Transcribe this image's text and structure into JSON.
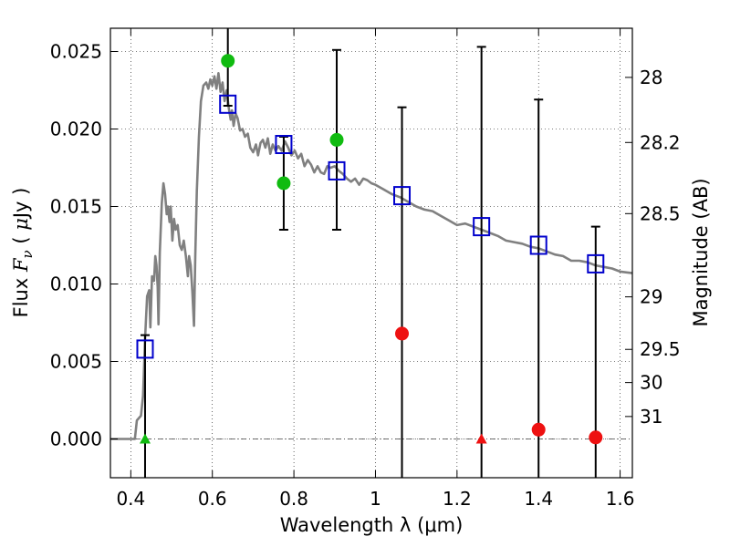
{
  "chart_data": {
    "type": "scatter",
    "xlabel": "Wavelength  λ (μm)",
    "ylabel": "Flux  F_ν  ( μJy )",
    "ylabel_parts": {
      "pre": "Flux  ",
      "sym": "F",
      "sub": "ν",
      "mid": "  ( ",
      "mu": "μ",
      "post": "Jy )"
    },
    "y2label": "Magnitude (AB)",
    "xlim": [
      0.35,
      1.63
    ],
    "ylim": [
      -0.0025,
      0.0265
    ],
    "grid": true,
    "x_ticks": [
      {
        "v": 0.4,
        "label": "0.4"
      },
      {
        "v": 0.6,
        "label": "0.6"
      },
      {
        "v": 0.8,
        "label": "0.8"
      },
      {
        "v": 1.0,
        "label": "1"
      },
      {
        "v": 1.2,
        "label": "1.2"
      },
      {
        "v": 1.4,
        "label": "1.4"
      },
      {
        "v": 1.6,
        "label": "1.6"
      }
    ],
    "y_ticks": [
      {
        "v": 0.0,
        "label": "0.000"
      },
      {
        "v": 0.005,
        "label": "0.005"
      },
      {
        "v": 0.01,
        "label": "0.010"
      },
      {
        "v": 0.015,
        "label": "0.015"
      },
      {
        "v": 0.02,
        "label": "0.020"
      },
      {
        "v": 0.025,
        "label": "0.025"
      }
    ],
    "mag_ticks": [
      {
        "v": 0.02333,
        "label": "28"
      },
      {
        "v": 0.01913,
        "label": "28.2"
      },
      {
        "v": 0.01454,
        "label": "28.5"
      },
      {
        "v": 0.00917,
        "label": "29"
      },
      {
        "v": 0.00578,
        "label": "29.5"
      },
      {
        "v": 0.00364,
        "label": "30"
      },
      {
        "v": 0.00145,
        "label": "31"
      }
    ],
    "model_spectrum": {
      "color": "#808080",
      "points": [
        [
          0.35,
          0.0
        ],
        [
          0.4,
          0.0
        ],
        [
          0.41,
          0.0
        ],
        [
          0.415,
          0.0012
        ],
        [
          0.425,
          0.0015
        ],
        [
          0.43,
          0.0028
        ],
        [
          0.435,
          0.0065
        ],
        [
          0.44,
          0.0092
        ],
        [
          0.445,
          0.0096
        ],
        [
          0.448,
          0.0072
        ],
        [
          0.452,
          0.0105
        ],
        [
          0.457,
          0.0102
        ],
        [
          0.46,
          0.0118
        ],
        [
          0.463,
          0.0112
        ],
        [
          0.466,
          0.0098
        ],
        [
          0.468,
          0.0074
        ],
        [
          0.471,
          0.012
        ],
        [
          0.476,
          0.0152
        ],
        [
          0.48,
          0.0165
        ],
        [
          0.484,
          0.0158
        ],
        [
          0.488,
          0.0145
        ],
        [
          0.491,
          0.015
        ],
        [
          0.495,
          0.014
        ],
        [
          0.498,
          0.015
        ],
        [
          0.502,
          0.0128
        ],
        [
          0.506,
          0.0142
        ],
        [
          0.51,
          0.0135
        ],
        [
          0.515,
          0.0138
        ],
        [
          0.52,
          0.0125
        ],
        [
          0.525,
          0.0122
        ],
        [
          0.53,
          0.0128
        ],
        [
          0.535,
          0.0118
        ],
        [
          0.54,
          0.0105
        ],
        [
          0.543,
          0.0118
        ],
        [
          0.547,
          0.0112
        ],
        [
          0.551,
          0.0095
        ],
        [
          0.555,
          0.0073
        ],
        [
          0.558,
          0.0118
        ],
        [
          0.562,
          0.016
        ],
        [
          0.567,
          0.0195
        ],
        [
          0.572,
          0.0218
        ],
        [
          0.578,
          0.0228
        ],
        [
          0.585,
          0.023
        ],
        [
          0.59,
          0.0226
        ],
        [
          0.595,
          0.0232
        ],
        [
          0.6,
          0.0228
        ],
        [
          0.605,
          0.0234
        ],
        [
          0.61,
          0.0226
        ],
        [
          0.615,
          0.0236
        ],
        [
          0.62,
          0.0224
        ],
        [
          0.625,
          0.023
        ],
        [
          0.63,
          0.0218
        ],
        [
          0.635,
          0.0225
        ],
        [
          0.64,
          0.0214
        ],
        [
          0.645,
          0.0206
        ],
        [
          0.648,
          0.0212
        ],
        [
          0.652,
          0.0202
        ],
        [
          0.657,
          0.021
        ],
        [
          0.662,
          0.0207
        ],
        [
          0.668,
          0.0199
        ],
        [
          0.674,
          0.02
        ],
        [
          0.68,
          0.0195
        ],
        [
          0.687,
          0.0197
        ],
        [
          0.693,
          0.0188
        ],
        [
          0.7,
          0.0185
        ],
        [
          0.707,
          0.019
        ],
        [
          0.712,
          0.0183
        ],
        [
          0.718,
          0.0191
        ],
        [
          0.724,
          0.0193
        ],
        [
          0.73,
          0.0188
        ],
        [
          0.736,
          0.0194
        ],
        [
          0.742,
          0.0184
        ],
        [
          0.748,
          0.019
        ],
        [
          0.755,
          0.0186
        ],
        [
          0.762,
          0.0189
        ],
        [
          0.77,
          0.0186
        ],
        [
          0.778,
          0.0192
        ],
        [
          0.786,
          0.0188
        ],
        [
          0.794,
          0.0183
        ],
        [
          0.802,
          0.0186
        ],
        [
          0.81,
          0.0181
        ],
        [
          0.818,
          0.0184
        ],
        [
          0.826,
          0.0176
        ],
        [
          0.834,
          0.018
        ],
        [
          0.842,
          0.0177
        ],
        [
          0.85,
          0.0172
        ],
        [
          0.858,
          0.0176
        ],
        [
          0.866,
          0.0172
        ],
        [
          0.874,
          0.0171
        ],
        [
          0.882,
          0.0176
        ],
        [
          0.89,
          0.0175
        ],
        [
          0.9,
          0.0176
        ],
        [
          0.91,
          0.0173
        ],
        [
          0.92,
          0.0171
        ],
        [
          0.93,
          0.0168
        ],
        [
          0.94,
          0.0166
        ],
        [
          0.95,
          0.0168
        ],
        [
          0.96,
          0.0164
        ],
        [
          0.97,
          0.0168
        ],
        [
          0.98,
          0.0167
        ],
        [
          0.99,
          0.0165
        ],
        [
          1.0,
          0.0164
        ],
        [
          1.02,
          0.0161
        ],
        [
          1.04,
          0.0158
        ],
        [
          1.06,
          0.0156
        ],
        [
          1.08,
          0.0153
        ],
        [
          1.1,
          0.015
        ],
        [
          1.12,
          0.0148
        ],
        [
          1.14,
          0.0147
        ],
        [
          1.16,
          0.0144
        ],
        [
          1.18,
          0.0141
        ],
        [
          1.2,
          0.0138
        ],
        [
          1.22,
          0.0139
        ],
        [
          1.24,
          0.0137
        ],
        [
          1.26,
          0.0135
        ],
        [
          1.28,
          0.0133
        ],
        [
          1.3,
          0.0131
        ],
        [
          1.32,
          0.0128
        ],
        [
          1.34,
          0.0127
        ],
        [
          1.36,
          0.0126
        ],
        [
          1.38,
          0.0124
        ],
        [
          1.4,
          0.0123
        ],
        [
          1.42,
          0.0121
        ],
        [
          1.44,
          0.0119
        ],
        [
          1.46,
          0.0118
        ],
        [
          1.48,
          0.0115
        ],
        [
          1.5,
          0.0115
        ],
        [
          1.52,
          0.0114
        ],
        [
          1.54,
          0.0112
        ],
        [
          1.56,
          0.0111
        ],
        [
          1.58,
          0.011
        ],
        [
          1.6,
          0.0108
        ],
        [
          1.63,
          0.0107
        ]
      ]
    },
    "model_bands": {
      "color": "#0000cc",
      "points": [
        [
          0.435,
          0.0058
        ],
        [
          0.638,
          0.0216
        ],
        [
          0.775,
          0.019
        ],
        [
          0.905,
          0.0173
        ],
        [
          1.065,
          0.0157
        ],
        [
          1.26,
          0.0137
        ],
        [
          1.4,
          0.0125
        ],
        [
          1.54,
          0.0113
        ]
      ]
    },
    "detections": {
      "color": "#10bb10",
      "points": [
        [
          0.638,
          0.0244
        ],
        [
          0.775,
          0.0165
        ],
        [
          0.905,
          0.0193
        ]
      ]
    },
    "nondetections": {
      "color": "#ee1111",
      "points": [
        [
          1.065,
          0.0068
        ],
        [
          1.4,
          0.0006
        ],
        [
          1.54,
          0.0001
        ]
      ]
    },
    "upper_limit_markers": [
      {
        "x": 0.435,
        "y": 0.0,
        "color": "#10bb10"
      },
      {
        "x": 1.26,
        "y": 0.0,
        "color": "#ee1111"
      }
    ],
    "error_bars": [
      {
        "x": 0.435,
        "low": -0.0025,
        "high": 0.0067
      },
      {
        "x": 0.638,
        "low": 0.0215,
        "high": 0.0265
      },
      {
        "x": 0.775,
        "low": 0.0135,
        "high": 0.0195
      },
      {
        "x": 0.905,
        "low": 0.0135,
        "high": 0.0251
      },
      {
        "x": 1.065,
        "low": -0.0025,
        "high": 0.0214
      },
      {
        "x": 1.26,
        "low": -0.0025,
        "high": 0.0253
      },
      {
        "x": 1.4,
        "low": -0.0025,
        "high": 0.0219
      },
      {
        "x": 1.54,
        "low": -0.0025,
        "high": 0.0137
      }
    ]
  }
}
